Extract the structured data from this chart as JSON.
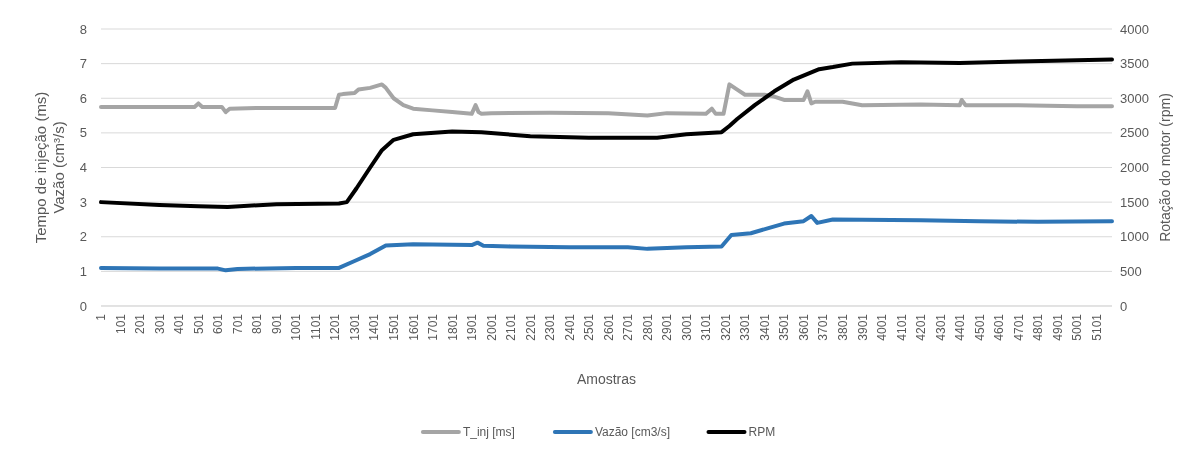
{
  "chart_data": {
    "type": "line",
    "xlabel": "Amostras",
    "ylabel": "Tempo de injeção (ms)\nVazão (cm³/s)",
    "y2label": "Rotação do motor (rpm)",
    "xlim": [
      1,
      5180
    ],
    "xticks": [
      1,
      101,
      201,
      301,
      401,
      501,
      601,
      701,
      801,
      901,
      1001,
      1101,
      1201,
      1301,
      1401,
      1501,
      1601,
      1701,
      1801,
      1901,
      2001,
      2101,
      2201,
      2301,
      2401,
      2501,
      2601,
      2701,
      2801,
      2901,
      3001,
      3101,
      3201,
      3301,
      3401,
      3501,
      3601,
      3701,
      3801,
      3901,
      4001,
      4101,
      4201,
      4301,
      4401,
      4501,
      4601,
      4701,
      4801,
      4901,
      5001,
      5101
    ],
    "ylim": [
      0,
      8
    ],
    "yticks": [
      0,
      1,
      2,
      3,
      4,
      5,
      6,
      7,
      8
    ],
    "y2lim": [
      0,
      4000
    ],
    "y2ticks": [
      0,
      500,
      1000,
      1500,
      2000,
      2500,
      3000,
      3500,
      4000
    ],
    "grid": "y",
    "legend": "bottom",
    "marker": "none",
    "line_style": "solid",
    "series": [
      {
        "name": "T_inj [ms]",
        "color": "#a5a5a5",
        "x": [
          1,
          200,
          480,
          500,
          520,
          620,
          640,
          660,
          800,
          1000,
          1200,
          1220,
          1240,
          1300,
          1320,
          1380,
          1440,
          1460,
          1500,
          1550,
          1600,
          1700,
          1800,
          1900,
          1920,
          1935,
          1950,
          2000,
          2300,
          2600,
          2800,
          2900,
          3100,
          3130,
          3150,
          3190,
          3220,
          3260,
          3300,
          3400,
          3450,
          3500,
          3550,
          3600,
          3620,
          3640,
          3660,
          3700,
          3800,
          3850,
          3900,
          4200,
          4400,
          4410,
          4430,
          4700,
          5000,
          5180
        ],
        "values": [
          5.75,
          5.75,
          5.75,
          5.85,
          5.75,
          5.75,
          5.6,
          5.7,
          5.72,
          5.72,
          5.72,
          6.1,
          6.12,
          6.15,
          6.25,
          6.3,
          6.4,
          6.3,
          6.0,
          5.8,
          5.7,
          5.65,
          5.6,
          5.55,
          5.8,
          5.6,
          5.55,
          5.57,
          5.58,
          5.57,
          5.5,
          5.57,
          5.55,
          5.7,
          5.55,
          5.55,
          6.4,
          6.25,
          6.1,
          6.1,
          6.05,
          5.95,
          5.95,
          5.95,
          6.2,
          5.85,
          5.9,
          5.9,
          5.9,
          5.85,
          5.8,
          5.82,
          5.8,
          5.95,
          5.8,
          5.8,
          5.77,
          5.77
        ]
      },
      {
        "name": "Vazão [cm3/s]",
        "color": "#2e75b6",
        "x": [
          1,
          300,
          600,
          640,
          700,
          1000,
          1220,
          1300,
          1380,
          1460,
          1600,
          1900,
          1930,
          1960,
          2100,
          2400,
          2700,
          2800,
          3000,
          3180,
          3230,
          3330,
          3420,
          3500,
          3600,
          3640,
          3670,
          3750,
          4200,
          4500,
          4800,
          5180
        ],
        "values": [
          1.1,
          1.08,
          1.08,
          1.03,
          1.07,
          1.1,
          1.1,
          1.3,
          1.5,
          1.75,
          1.78,
          1.76,
          1.83,
          1.74,
          1.72,
          1.7,
          1.7,
          1.65,
          1.7,
          1.72,
          2.05,
          2.1,
          2.25,
          2.38,
          2.45,
          2.6,
          2.4,
          2.5,
          2.48,
          2.45,
          2.43,
          2.45
        ]
      },
      {
        "name": "RPM",
        "color": "#000000",
        "axis": "y2",
        "x": [
          1,
          300,
          500,
          650,
          900,
          1220,
          1260,
          1310,
          1380,
          1440,
          1500,
          1600,
          1800,
          1950,
          2200,
          2500,
          2850,
          3000,
          3180,
          3220,
          3260,
          3350,
          3450,
          3550,
          3680,
          3750,
          3850,
          4100,
          4400,
          4700,
          5000,
          5180
        ],
        "values": [
          1500,
          1460,
          1440,
          1430,
          1470,
          1480,
          1500,
          1700,
          2000,
          2250,
          2400,
          2480,
          2520,
          2510,
          2450,
          2430,
          2430,
          2480,
          2510,
          2600,
          2700,
          2900,
          3100,
          3270,
          3420,
          3450,
          3500,
          3520,
          3510,
          3530,
          3550,
          3560
        ]
      }
    ]
  }
}
